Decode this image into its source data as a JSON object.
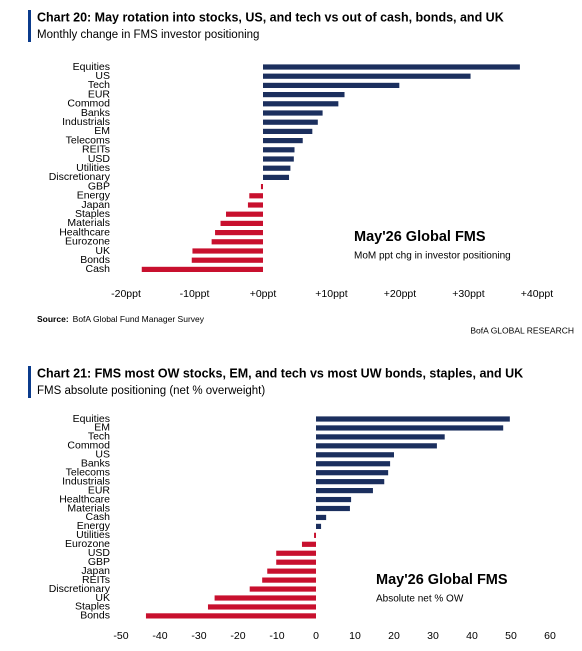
{
  "chart_data": [
    {
      "type": "bar",
      "orientation": "horizontal",
      "title": "Chart 20: May rotation into stocks, US, and tech vs out of cash, bonds, and UK",
      "subtitle": "Monthly change in FMS investor positioning",
      "categories": [
        "Equities",
        "US",
        "Tech",
        "EUR",
        "Commod",
        "Banks",
        "Industrials",
        "EM",
        "Telecoms",
        "REITs",
        "USD",
        "Utilities",
        "Discretionary",
        "GBP",
        "Energy",
        "Japan",
        "Staples",
        "Materials",
        "Healthcare",
        "Eurozone",
        "UK",
        "Bonds",
        "Cash"
      ],
      "values": [
        37.5,
        30.3,
        19.9,
        11.9,
        11,
        8.7,
        8,
        7.2,
        5.8,
        4.6,
        4.5,
        4,
        3.8,
        -0.3,
        -2,
        -2.2,
        -5.4,
        -6.2,
        -7,
        -7.5,
        -10.3,
        -10.4,
        -17.7
      ],
      "color_positive": "#1b2f5e",
      "color_negative": "#c8102e",
      "xlim": [
        -22,
        42
      ],
      "xticks": [
        {
          "value": -20,
          "label": "-20ppt"
        },
        {
          "value": -10,
          "label": "-10ppt"
        },
        {
          "value": 0,
          "label": "+0ppt"
        },
        {
          "value": 10,
          "label": "+10ppt"
        },
        {
          "value": 20,
          "label": "+20ppt"
        },
        {
          "value": 30,
          "label": "+30ppt"
        },
        {
          "value": 40,
          "label": "+40ppt"
        }
      ],
      "annotation": {
        "title": "May'26 Global FMS",
        "subtitle": "MoM ppt chg in investor positioning"
      },
      "source_label": "Source:",
      "source": "BofA Global Fund Manager Survey",
      "footer": "BofA GLOBAL RESEARCH"
    },
    {
      "type": "bar",
      "orientation": "horizontal",
      "title": "Chart 21: FMS most OW stocks, EM, and tech vs most UW bonds, staples, and UK",
      "subtitle": "FMS absolute positioning (net % overweight)",
      "categories": [
        "Equities",
        "EM",
        "Tech",
        "Commod",
        "US",
        "Banks",
        "Telecoms",
        "Industrials",
        "EUR",
        "Healthcare",
        "Materials",
        "Cash",
        "Energy",
        "Utilities",
        "Eurozone",
        "USD",
        "GBP",
        "Japan",
        "REITs",
        "Discretionary",
        "UK",
        "Staples",
        "Bonds"
      ],
      "values": [
        49.7,
        48,
        33,
        31,
        20,
        19,
        18.5,
        17.5,
        14.6,
        9,
        8.7,
        2.6,
        1.3,
        -0.5,
        -3.6,
        -10.2,
        -10.2,
        -12.5,
        -13.8,
        -17,
        -26,
        -27.7,
        -43.6
      ],
      "color_positive": "#1b2f5e",
      "color_negative": "#c8102e",
      "xlim": [
        -50,
        60
      ],
      "xticks": [
        -50,
        -40,
        -30,
        -20,
        -10,
        0,
        10,
        20,
        30,
        40,
        50,
        60
      ],
      "annotation": {
        "title": "May'26 Global FMS",
        "subtitle": "Absolute net % OW"
      }
    }
  ]
}
